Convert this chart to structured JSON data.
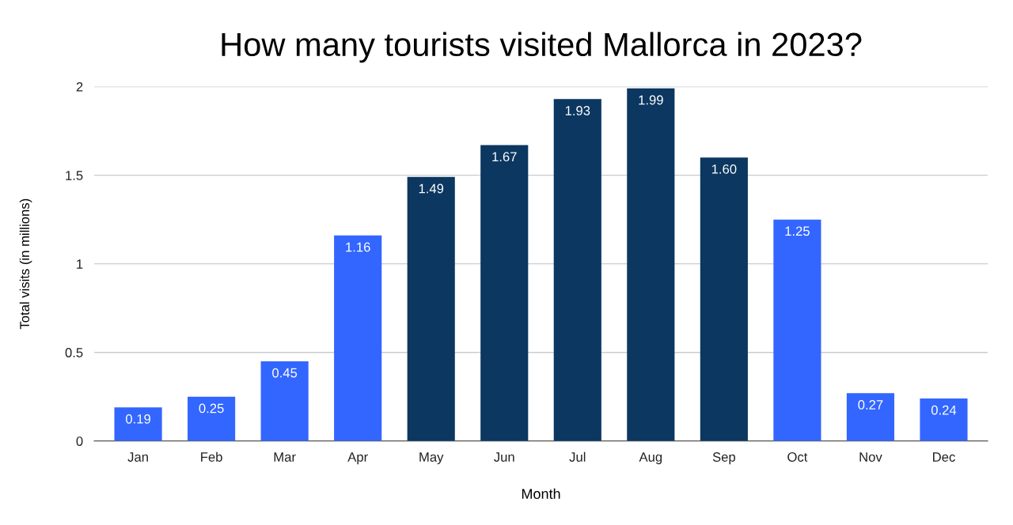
{
  "chart_data": {
    "type": "bar",
    "title": "How many tourists visited Mallorca in 2023?",
    "xlabel": "Month",
    "ylabel": "Total visits (in millions)",
    "categories": [
      "Jan",
      "Feb",
      "Mar",
      "Apr",
      "May",
      "Jun",
      "Jul",
      "Aug",
      "Sep",
      "Oct",
      "Nov",
      "Dec"
    ],
    "values": [
      0.19,
      0.25,
      0.45,
      1.16,
      1.49,
      1.67,
      1.93,
      1.99,
      1.6,
      1.25,
      0.27,
      0.24
    ],
    "value_labels": [
      "0.19",
      "0.25",
      "0.45",
      "1.16",
      "1.49",
      "1.67",
      "1.93",
      "1.99",
      "1.60",
      "1.25",
      "0.27",
      "0.24"
    ],
    "colors": [
      "#3366ff",
      "#3366ff",
      "#3366ff",
      "#3366ff",
      "#0b3760",
      "#0b3760",
      "#0b3760",
      "#0b3760",
      "#0b3760",
      "#3366ff",
      "#3366ff",
      "#3366ff"
    ],
    "ylim": [
      0,
      2
    ],
    "yticks": [
      0,
      0.5,
      1,
      1.5,
      2
    ],
    "grid": "y",
    "legend": false
  }
}
